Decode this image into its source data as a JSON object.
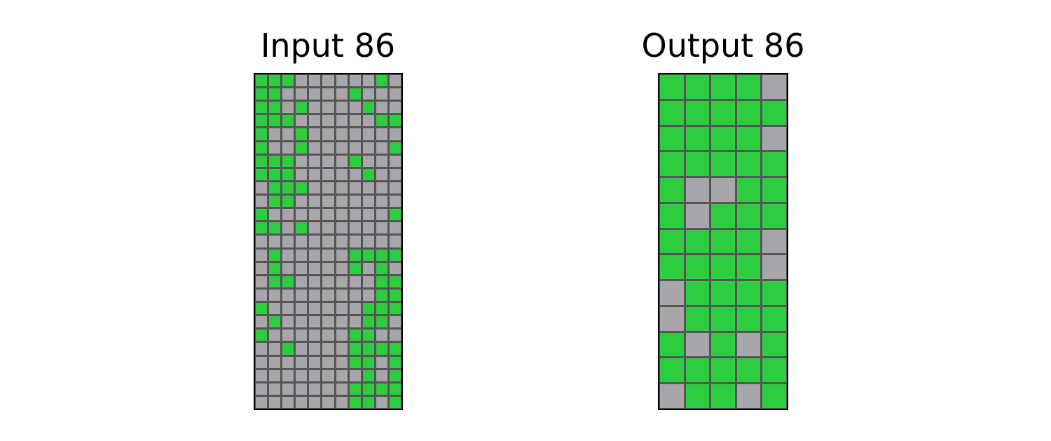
{
  "input": {
    "title": "Input 86",
    "rows": [
      [
        1,
        1,
        1,
        0,
        0,
        0,
        0,
        0,
        0,
        1,
        0
      ],
      [
        1,
        1,
        0,
        0,
        0,
        0,
        0,
        1,
        0,
        0,
        0
      ],
      [
        1,
        1,
        0,
        1,
        0,
        0,
        0,
        0,
        1,
        0,
        0
      ],
      [
        1,
        1,
        1,
        0,
        0,
        0,
        0,
        0,
        0,
        1,
        1
      ],
      [
        1,
        0,
        0,
        1,
        0,
        0,
        0,
        0,
        0,
        0,
        0
      ],
      [
        1,
        0,
        0,
        1,
        0,
        0,
        0,
        0,
        0,
        0,
        1
      ],
      [
        1,
        1,
        1,
        0,
        0,
        0,
        0,
        1,
        0,
        0,
        0
      ],
      [
        1,
        1,
        1,
        0,
        0,
        0,
        0,
        0,
        1,
        0,
        0
      ],
      [
        0,
        1,
        1,
        1,
        0,
        0,
        0,
        0,
        0,
        0,
        0
      ],
      [
        0,
        1,
        1,
        0,
        0,
        0,
        0,
        0,
        0,
        0,
        0
      ],
      [
        1,
        0,
        0,
        0,
        0,
        0,
        0,
        0,
        0,
        0,
        1
      ],
      [
        1,
        1,
        0,
        1,
        0,
        0,
        0,
        0,
        0,
        0,
        0
      ],
      [
        0,
        0,
        0,
        0,
        0,
        0,
        0,
        0,
        0,
        0,
        0
      ],
      [
        0,
        1,
        0,
        0,
        0,
        0,
        0,
        1,
        1,
        1,
        1
      ],
      [
        0,
        1,
        0,
        0,
        0,
        0,
        0,
        1,
        0,
        1,
        0
      ],
      [
        0,
        1,
        1,
        0,
        0,
        0,
        0,
        0,
        0,
        1,
        1
      ],
      [
        0,
        0,
        0,
        0,
        0,
        0,
        0,
        0,
        0,
        1,
        1
      ],
      [
        1,
        0,
        0,
        0,
        0,
        0,
        0,
        0,
        1,
        1,
        1
      ],
      [
        0,
        1,
        0,
        0,
        0,
        0,
        0,
        0,
        1,
        1,
        0
      ],
      [
        1,
        0,
        0,
        0,
        0,
        0,
        0,
        1,
        1,
        0,
        0
      ],
      [
        0,
        0,
        1,
        0,
        0,
        0,
        0,
        1,
        1,
        1,
        1
      ],
      [
        0,
        0,
        0,
        0,
        0,
        0,
        0,
        1,
        1,
        0,
        1
      ],
      [
        0,
        0,
        0,
        0,
        0,
        0,
        0,
        0,
        1,
        0,
        1
      ],
      [
        0,
        0,
        0,
        0,
        0,
        0,
        0,
        1,
        1,
        1,
        1
      ],
      [
        0,
        0,
        0,
        0,
        0,
        0,
        0,
        1,
        1,
        0,
        1
      ]
    ]
  },
  "output": {
    "title": "Output 86",
    "rows": [
      [
        1,
        1,
        1,
        1,
        0
      ],
      [
        1,
        1,
        1,
        1,
        1
      ],
      [
        1,
        1,
        1,
        1,
        0
      ],
      [
        1,
        1,
        1,
        1,
        1
      ],
      [
        1,
        0,
        0,
        1,
        1
      ],
      [
        1,
        0,
        1,
        1,
        1
      ],
      [
        1,
        1,
        1,
        1,
        0
      ],
      [
        1,
        1,
        1,
        1,
        0
      ],
      [
        0,
        1,
        1,
        1,
        1
      ],
      [
        0,
        1,
        1,
        1,
        1
      ],
      [
        1,
        0,
        1,
        0,
        1
      ],
      [
        1,
        1,
        1,
        1,
        1
      ],
      [
        0,
        1,
        1,
        0,
        1
      ]
    ]
  },
  "colors": {
    "0": "#a8a6aa",
    "1": "#2ecc40",
    "grid_line": "#555555",
    "border": "#000000"
  }
}
